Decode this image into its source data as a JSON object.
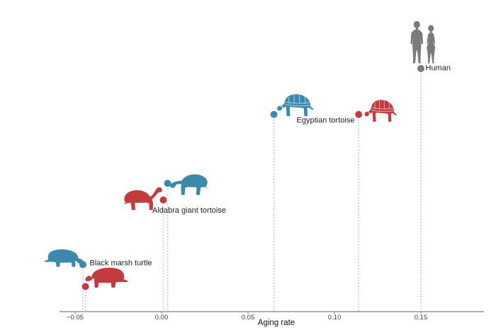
{
  "chart_data": {
    "type": "scatter",
    "title": "",
    "xlabel": "Aging rate",
    "xticks": [
      -0.05,
      0.0,
      0.05,
      0.1,
      0.15
    ],
    "xlim": [
      -0.065,
      0.187
    ],
    "grid": false,
    "points": [
      {
        "id": "black-marsh-turtle-blue",
        "species": "Black marsh turtle",
        "series": "blue",
        "x": -0.0455
      },
      {
        "id": "black-marsh-turtle-red",
        "species": "Black marsh turtle",
        "series": "red",
        "x": -0.044
      },
      {
        "id": "aldabra-giant-tortoise-red",
        "species": "Aldabra giant tortoise",
        "series": "red",
        "x": 0.001
      },
      {
        "id": "aldabra-giant-tortoise-blue",
        "species": "Aldabra giant tortoise",
        "series": "blue",
        "x": 0.0035
      },
      {
        "id": "egyptian-tortoise-blue",
        "species": "Egyptian tortoise",
        "series": "blue",
        "x": 0.065
      },
      {
        "id": "egyptian-tortoise-red",
        "species": "Egyptian tortoise",
        "series": "red",
        "x": 0.114
      },
      {
        "id": "human-gray",
        "species": "Human",
        "series": "gray",
        "x": 0.15
      }
    ],
    "labels": {
      "black_marsh_turtle": "Black marsh turtle",
      "aldabra_giant_tortoise": "Aldabra giant tortoise",
      "egyptian_tortoise": "Egyptian tortoise",
      "human": "Human"
    },
    "colors": {
      "blue": "#3c89ae",
      "red": "#c33b3e",
      "gray": "#7b7b7b",
      "blue_light": "#aecfe0",
      "red_light": "#e7bfc0",
      "gray_light": "#c4c4c4",
      "blue_pattern": "#9dc6da",
      "red_pattern": "#e2a3a4",
      "axis": "#808080"
    }
  }
}
